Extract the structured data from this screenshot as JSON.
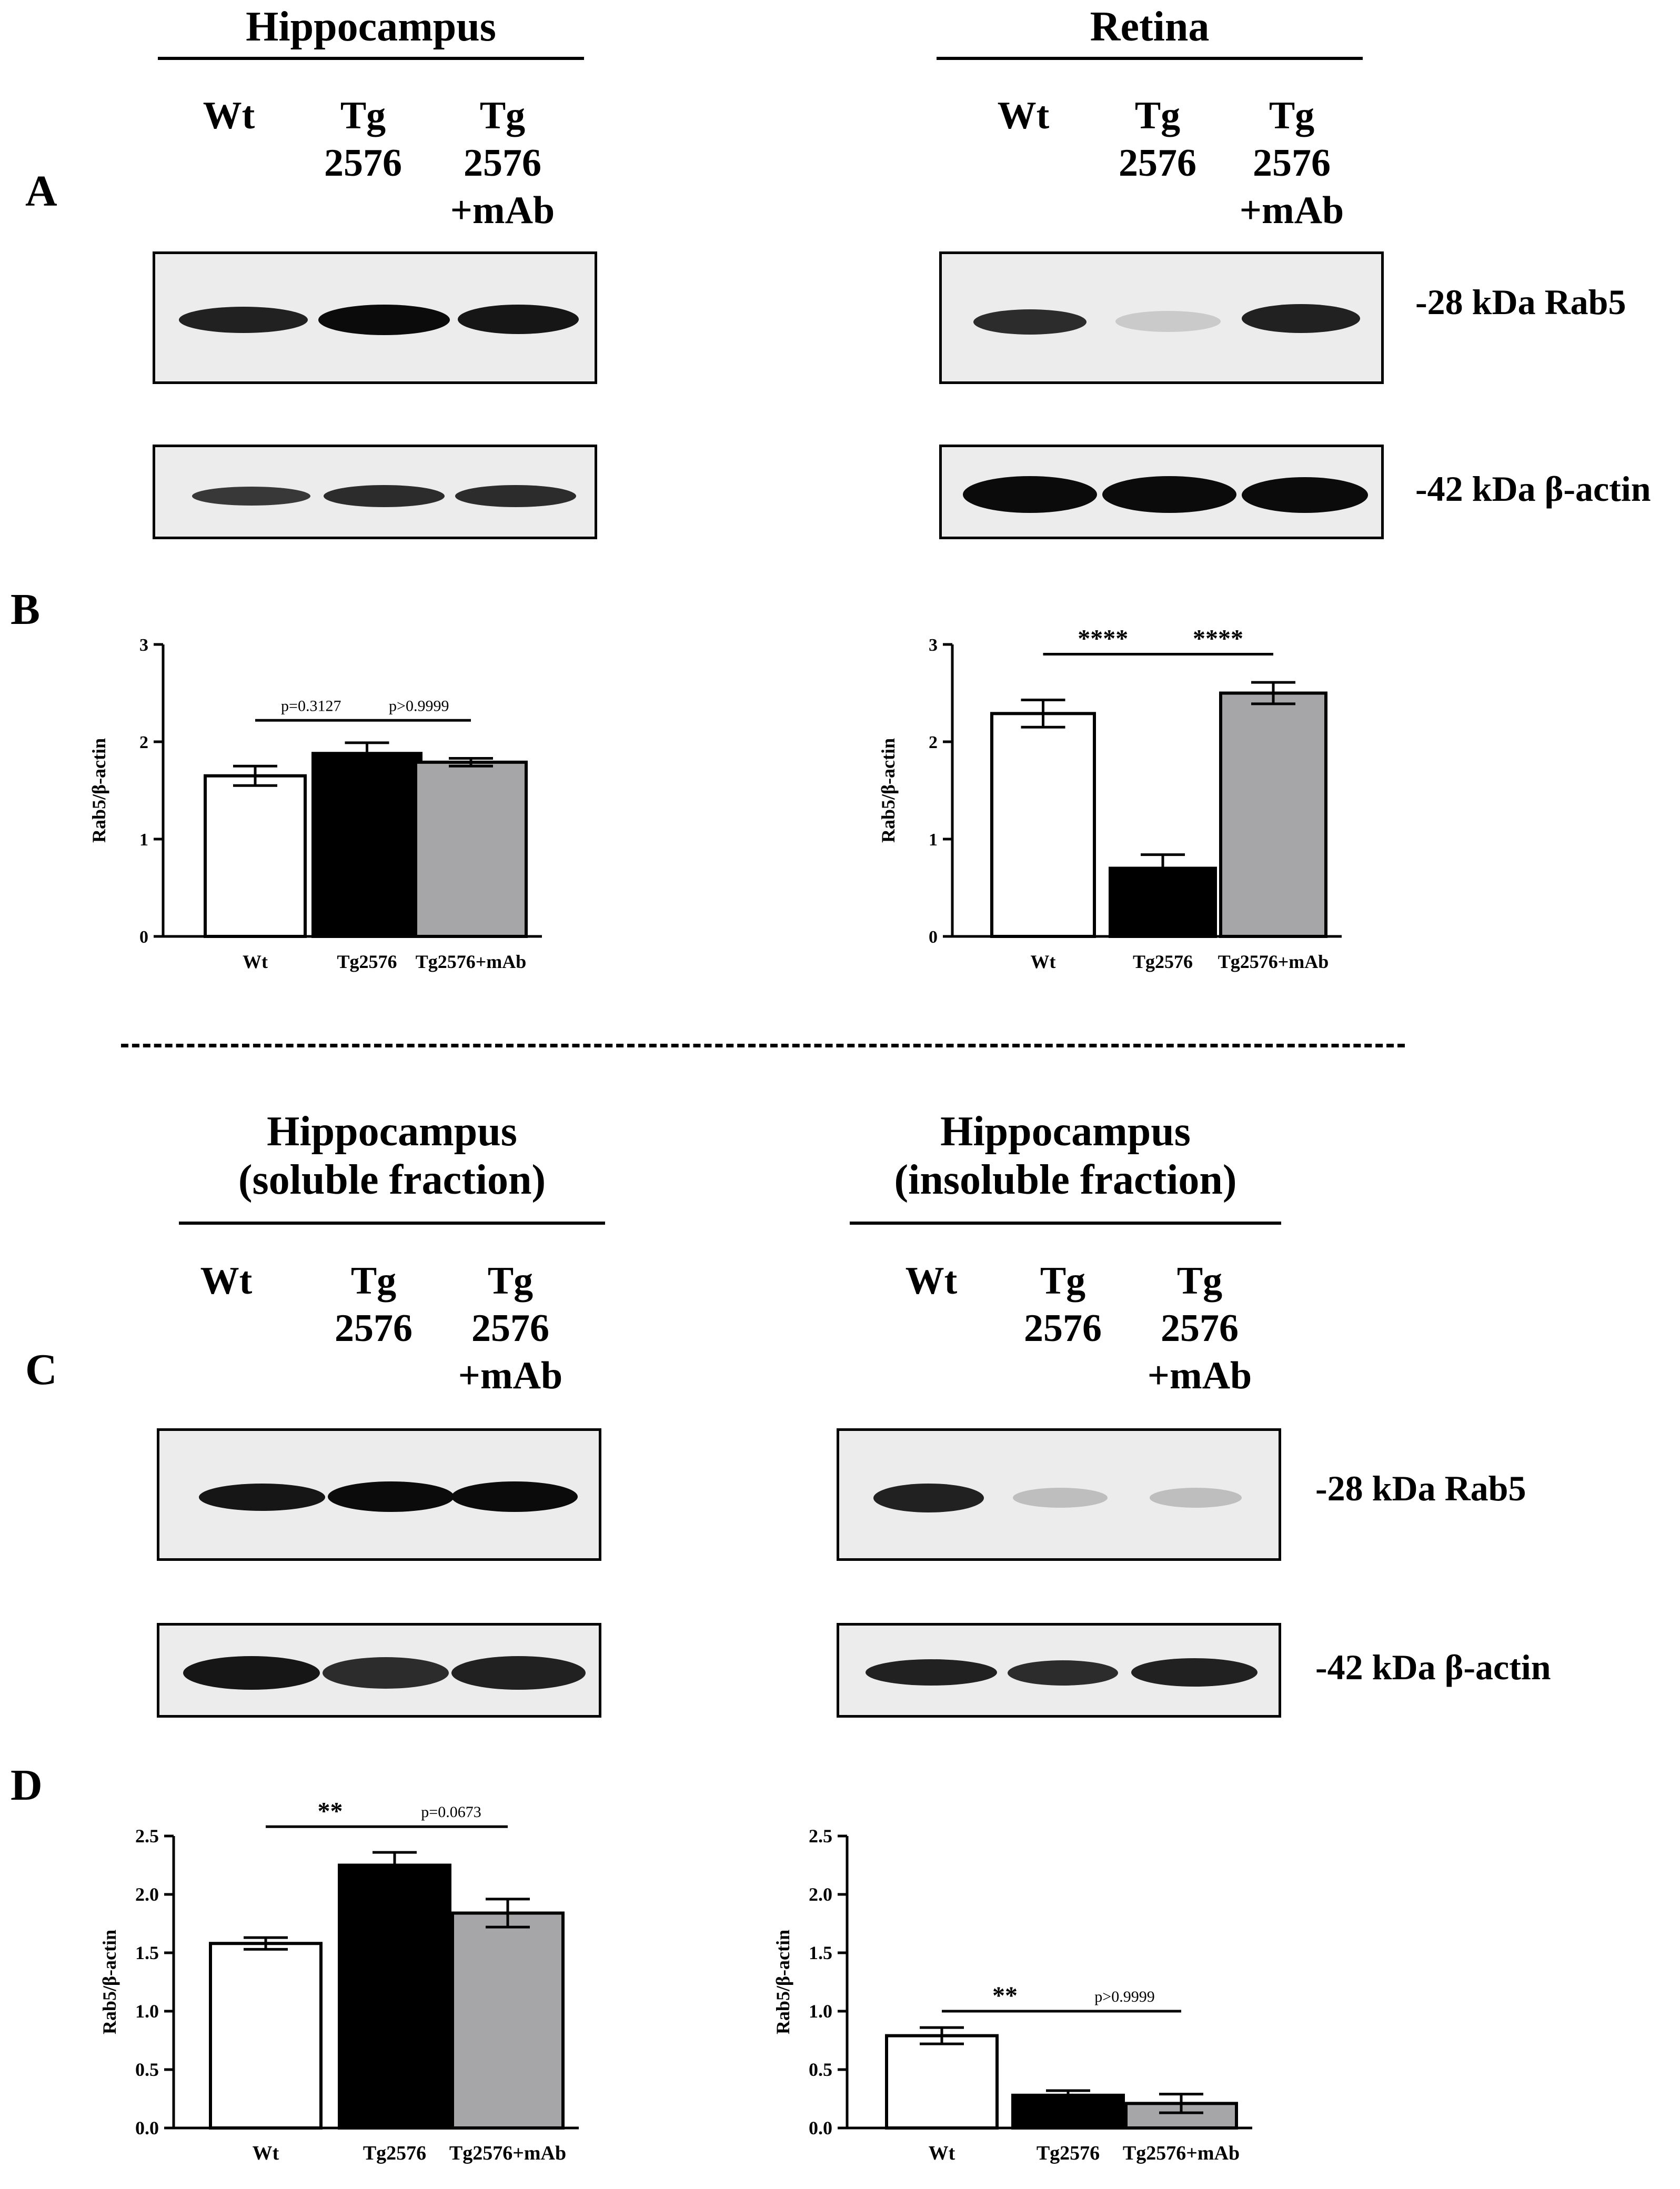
{
  "top": {
    "left_title": "Hippocampus",
    "right_title": "Retina",
    "left_lanes": [
      "Wt",
      "Tg\n2576",
      "Tg\n2576\n+mAb"
    ],
    "right_lanes": [
      "Wt",
      "Tg\n2576",
      "Tg\n2576\n+mAb"
    ],
    "panel_a": "A",
    "panel_b": "B",
    "rab5_label": "-28 kDa Rab5",
    "actin_label": "-42 kDa β-actin"
  },
  "bottom": {
    "left_title": "Hippocampus\n(soluble fraction)",
    "right_title": "Hippocampus\n(insoluble fraction)",
    "left_lanes": [
      "Wt",
      "Tg\n2576",
      "Tg\n2576\n+mAb"
    ],
    "right_lanes": [
      "Wt",
      "Tg\n2576",
      "Tg\n2576\n+mAb"
    ],
    "panel_c": "C",
    "panel_d": "D",
    "rab5_label": "-28 kDa Rab5",
    "actin_label": "-42 kDa β-actin"
  },
  "blots": {
    "hippo_rab5": [
      0.9,
      1.0,
      0.95
    ],
    "retina_rab5": [
      0.85,
      0.15,
      0.9
    ],
    "hippo_actin": [
      0.8,
      0.85,
      0.85
    ],
    "retina_actin": [
      1.0,
      1.0,
      1.0
    ],
    "sol_rab5": [
      0.95,
      1.0,
      1.0
    ],
    "insol_rab5": [
      0.9,
      0.2,
      0.2
    ],
    "sol_actin": [
      0.95,
      0.85,
      0.9
    ],
    "insol_actin": [
      0.9,
      0.85,
      0.9
    ]
  },
  "colors": {
    "wt": "#ffffff",
    "tg": "#000000",
    "tg_mab": "#a6a6a8"
  },
  "chart_data": [
    {
      "type": "bar",
      "categories": [
        "Wt",
        "Tg2576",
        "Tg2576+mAb"
      ],
      "values": [
        1.65,
        1.88,
        1.79
      ],
      "errors": [
        0.1,
        0.11,
        0.04
      ],
      "ylabel": "Rab5/β-actin",
      "ylim": [
        0,
        3
      ],
      "yticks": [
        "0",
        "1",
        "2",
        "3"
      ],
      "comparisons": [
        {
          "from": 0,
          "to": 1,
          "label": "p=0.3127",
          "y": 2.22
        },
        {
          "from": 1,
          "to": 2,
          "label": "p>0.9999",
          "y": 2.22
        }
      ]
    },
    {
      "type": "bar",
      "categories": [
        "Wt",
        "Tg2576",
        "Tg2576+mAb"
      ],
      "values": [
        2.29,
        0.7,
        2.5
      ],
      "errors": [
        0.14,
        0.14,
        0.11
      ],
      "ylabel": "Rab5/β-actin",
      "ylim": [
        0,
        3
      ],
      "yticks": [
        "0",
        "1",
        "2",
        "3"
      ],
      "comparisons": [
        {
          "from": 0,
          "to": 1,
          "label": "****",
          "y": 2.9
        },
        {
          "from": 1,
          "to": 2,
          "label": "****",
          "y": 2.9
        }
      ]
    },
    {
      "type": "bar",
      "categories": [
        "Wt",
        "Tg2576",
        "Tg2576+mAb"
      ],
      "values": [
        1.58,
        2.25,
        1.84
      ],
      "errors": [
        0.05,
        0.11,
        0.12
      ],
      "ylabel": "Rab5/β-actin",
      "ylim": [
        0,
        2.5
      ],
      "yticks": [
        "0.0",
        "0.5",
        "1.0",
        "1.5",
        "2.0",
        "2.5"
      ],
      "comparisons": [
        {
          "from": 0,
          "to": 1,
          "label": "**",
          "y": 2.58
        },
        {
          "from": 1,
          "to": 2,
          "label": "p=0.0673",
          "y": 2.58
        }
      ]
    },
    {
      "type": "bar",
      "categories": [
        "Wt",
        "Tg2576",
        "Tg2576+mAb"
      ],
      "values": [
        0.79,
        0.28,
        0.21
      ],
      "errors": [
        0.07,
        0.04,
        0.08
      ],
      "ylabel": "Rab5/β-actin",
      "ylim": [
        0,
        2.5
      ],
      "yticks": [
        "0.0",
        "0.5",
        "1.0",
        "1.5",
        "2.0",
        "2.5"
      ],
      "comparisons": [
        {
          "from": 0,
          "to": 1,
          "label": "**",
          "y": 1.0
        },
        {
          "from": 1,
          "to": 2,
          "label": "p>0.9999",
          "y": 1.0
        }
      ]
    }
  ]
}
